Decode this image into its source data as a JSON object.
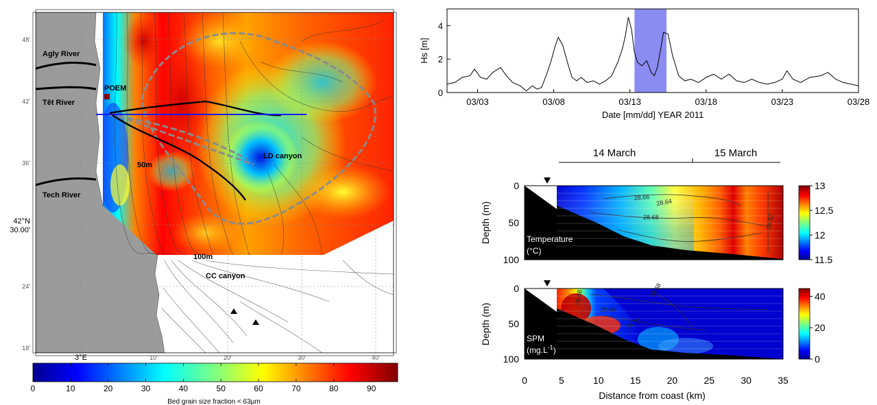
{
  "map": {
    "lat_ticks": [
      "48'",
      "42'",
      "36'",
      "30.00'",
      "24'",
      "18'"
    ],
    "lat_main": "42°N",
    "lon_ticks": [
      "3°E",
      "10'",
      "20'",
      "30'",
      "40'"
    ],
    "labels": {
      "agly": "Agly River",
      "tet": "Têt River",
      "tech": "Tech River",
      "poem": "POEM",
      "ld": "LD canyon",
      "cc": "CC canyon",
      "d50": "50m",
      "d100": "100m"
    },
    "colorbar": {
      "ticks": [
        "0",
        "10",
        "20",
        "30",
        "40",
        "50",
        "60",
        "70",
        "80",
        "90"
      ],
      "range": [
        0,
        97
      ],
      "label": "Bed grain size fraction < 63µm",
      "colors": [
        "#00008f",
        "#0000ff",
        "#0080ff",
        "#00ffff",
        "#80ff80",
        "#ffff00",
        "#ff8000",
        "#ff0000",
        "#800000"
      ]
    }
  },
  "chart_data": [
    {
      "type": "line",
      "ylabel": "Hs [m]",
      "xlabel": "Date [mm/dd] YEAR 2011",
      "xticks": [
        "03/03",
        "03/08",
        "03/13",
        "03/18",
        "03/23",
        "03/28"
      ],
      "yticks": [
        "0",
        "2",
        "4"
      ],
      "ylim": [
        0,
        5
      ],
      "xlim_days": [
        1,
        28
      ],
      "highlight_days": [
        13.3,
        15.4
      ],
      "highlight_color": "#8a8cf2",
      "series": [
        {
          "x": [
            1,
            1.5,
            2,
            2.5,
            2.8,
            3.2,
            3.6,
            4,
            4.5,
            4.9,
            5.3,
            5.8,
            6.2,
            6.6,
            6.9,
            7.2,
            7.5,
            7.8,
            8.1,
            8.3,
            8.6,
            8.9,
            9.2,
            9.5,
            9.8,
            10.2,
            10.6,
            11,
            11.4,
            11.8,
            12.2,
            12.5,
            12.7,
            12.9,
            13.1,
            13.3,
            13.5,
            13.8,
            14.1,
            14.4,
            14.6,
            14.8,
            15,
            15.2,
            15.5,
            15.8,
            16.2,
            16.6,
            17,
            17.5,
            18,
            18.5,
            19,
            19.5,
            20,
            20.5,
            21,
            21.5,
            22,
            22.5,
            23,
            23.3,
            23.7,
            24.2,
            24.8,
            25.5,
            26,
            26.5,
            27,
            27.5,
            28
          ],
          "y": [
            0.5,
            0.6,
            0.9,
            1.0,
            1.4,
            0.9,
            0.8,
            1.2,
            1.5,
            1.0,
            0.6,
            0.4,
            0.1,
            0.4,
            0.2,
            0.3,
            1.0,
            1.8,
            2.8,
            3.3,
            2.8,
            1.8,
            0.9,
            0.7,
            0.9,
            0.6,
            0.7,
            0.5,
            0.7,
            1.0,
            1.8,
            2.6,
            3.4,
            4.5,
            3.8,
            2.4,
            1.8,
            1.6,
            1.9,
            1.2,
            1.0,
            1.5,
            2.5,
            3.6,
            3.5,
            2.2,
            1.0,
            0.7,
            0.8,
            0.6,
            0.9,
            1.1,
            0.8,
            1.1,
            0.7,
            0.6,
            0.8,
            0.6,
            0.5,
            0.6,
            0.8,
            1.3,
            0.8,
            0.6,
            0.9,
            1.0,
            1.2,
            0.8,
            0.6,
            0.5,
            0.4
          ]
        }
      ]
    },
    {
      "type": "heatmap",
      "title": "14 March",
      "title2": "15 March",
      "xlabel": "Distance from coast (km)",
      "ylabel": "Depth (m)",
      "xticks": [
        "0",
        "5",
        "10",
        "15",
        "20",
        "25",
        "30",
        "35"
      ],
      "xlim": [
        0,
        35
      ],
      "ylim": [
        0,
        100
      ],
      "yticks": [
        "0",
        "50",
        "100"
      ],
      "label": "Temperature",
      "label_unit": "(°C)",
      "colorbar_ticks": [
        "13",
        "12.5",
        "12",
        "11.5"
      ],
      "colorbar_range": [
        11.5,
        13
      ],
      "contours": [
        "28.64",
        "28.66",
        "28.68",
        "28.62"
      ]
    },
    {
      "type": "heatmap",
      "xlabel": "Distance from coast (km)",
      "ylabel": "Depth (m)",
      "xlim": [
        0,
        35
      ],
      "ylim": [
        0,
        100
      ],
      "yticks": [
        "0",
        "50",
        "100"
      ],
      "label": "SPM",
      "label_unit": "(mg.L",
      "label_exp": "-1",
      "label_close": ")",
      "colorbar_ticks": [
        "40",
        "20",
        "0"
      ],
      "colorbar_range": [
        0,
        45
      ],
      "contours": [
        "28.68",
        "28.66",
        "28.70",
        "28.68"
      ]
    }
  ]
}
